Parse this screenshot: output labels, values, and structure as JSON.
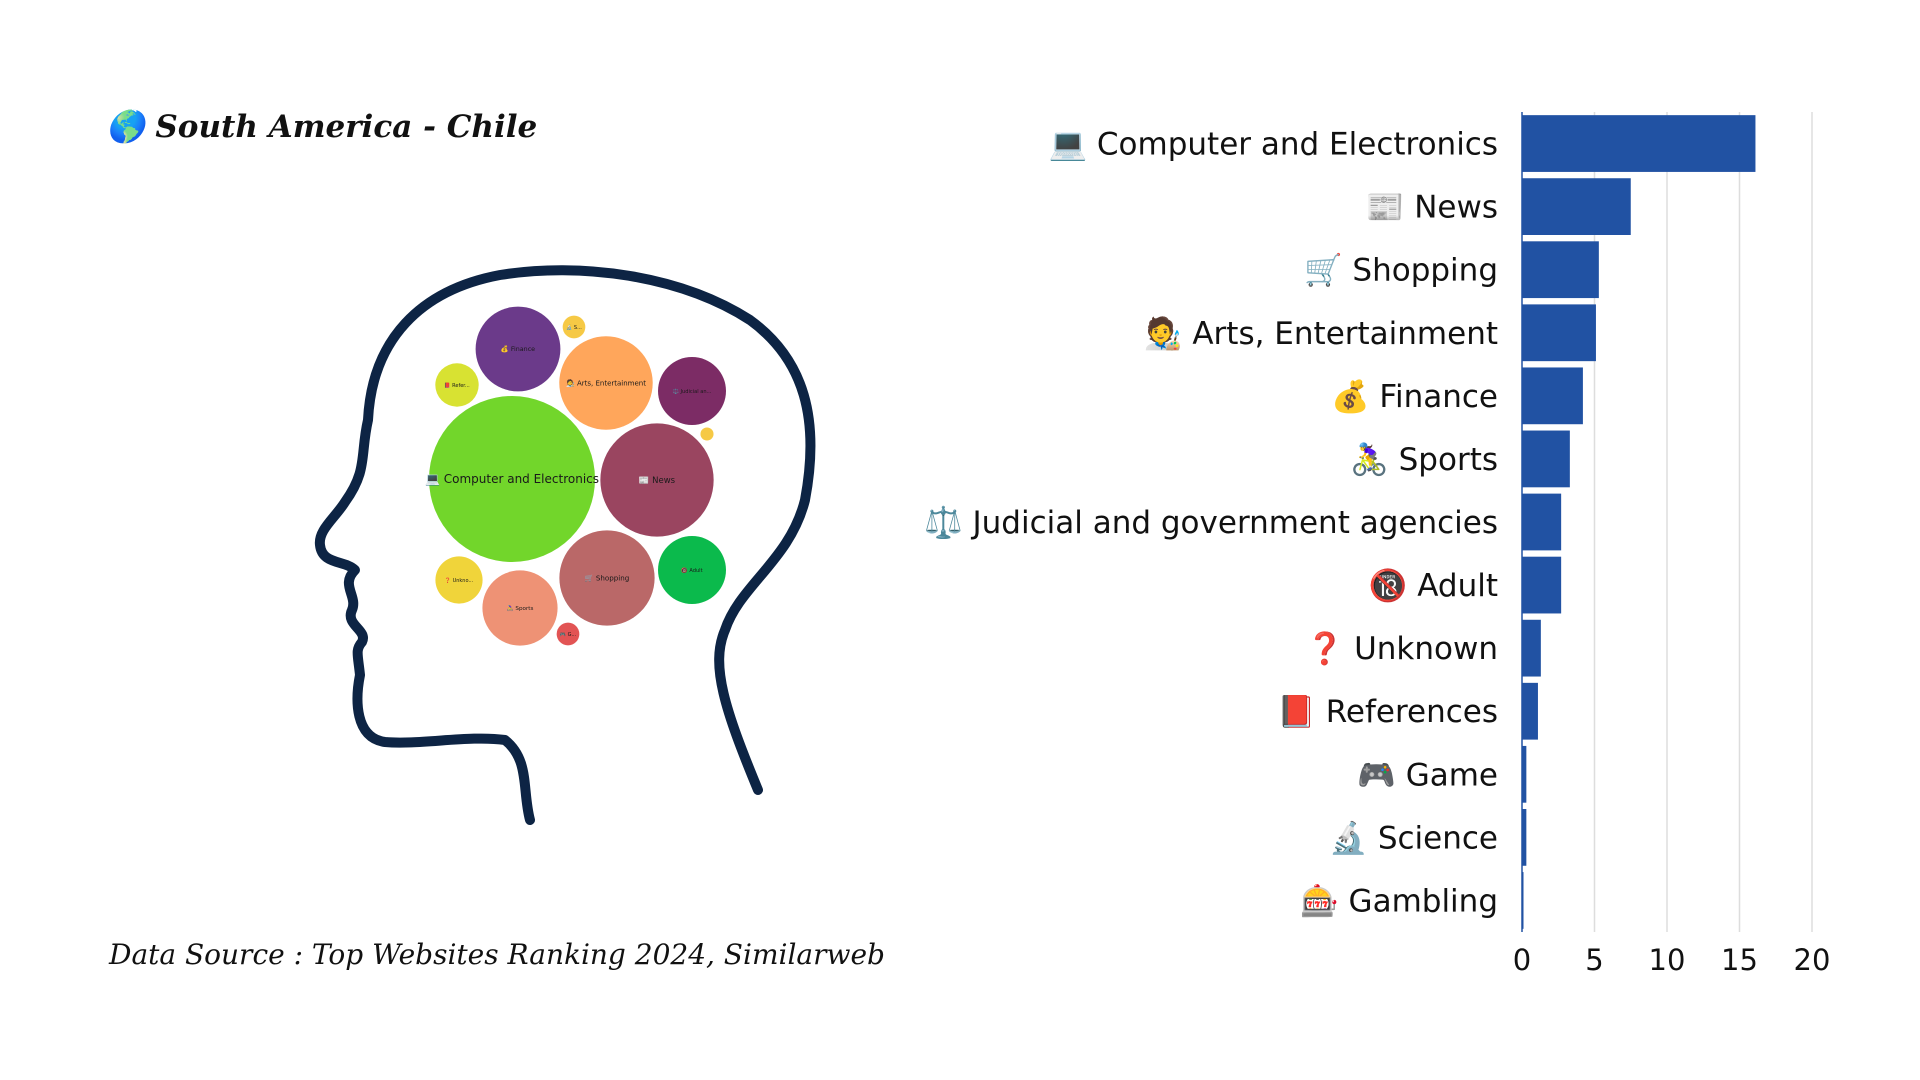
{
  "header": {
    "title": "🌎 South America - Chile",
    "source": "Data Source : Top Websites Ranking 2024, Similarweb"
  },
  "colors": {
    "bar": "#2152a3",
    "grid": "#dddddd",
    "head_outline": "#0d2444"
  },
  "chart_data": [
    {
      "type": "bar",
      "orientation": "horizontal",
      "categories": [
        "💻 Computer and Electronics",
        "📰 News",
        "🛒 Shopping",
        "🧑‍🎨 Arts, Entertainment",
        "💰 Finance",
        "🚴‍♀️ Sports",
        "⚖️ Judicial and government agencies",
        "🔞 Adult",
        "❓ Unknown",
        "📕 References",
        "🎮 Game",
        "🔬 Science",
        "🎰 Gambling"
      ],
      "values": [
        16.1,
        7.5,
        5.3,
        5.1,
        4.2,
        3.3,
        2.7,
        2.7,
        1.3,
        1.1,
        0.3,
        0.3,
        0.1
      ],
      "xlim": [
        0,
        20
      ],
      "xticks": [
        0,
        5,
        10,
        15,
        20
      ],
      "grid": true
    },
    {
      "type": "bubble",
      "bubbles": [
        {
          "label": "💻 Computer and Electronics",
          "value": 16.1,
          "color": "#72d62b"
        },
        {
          "label": "📰 News",
          "value": 7.5,
          "color": "#9a4560"
        },
        {
          "label": "🛒 Shopping",
          "value": 5.3,
          "color": "#ba6868"
        },
        {
          "label": "🧑‍🎨 Arts, Entertainment",
          "value": 5.1,
          "color": "#ffa65b"
        },
        {
          "label": "💰 Finance",
          "value": 4.2,
          "color": "#6b3a8a"
        },
        {
          "label": "🚴‍♀️ Sports",
          "value": 3.3,
          "color": "#ee9275"
        },
        {
          "label": "⚖️ Judicial an...",
          "value": 2.7,
          "color": "#7c2c65"
        },
        {
          "label": "🔞 Adult",
          "value": 2.7,
          "color": "#0bba4c"
        },
        {
          "label": "❓ Unkno...",
          "value": 1.3,
          "color": "#f0d43a"
        },
        {
          "label": "📕 Refer...",
          "value": 1.1,
          "color": "#d8e232"
        },
        {
          "label": "🎮 G...",
          "value": 0.3,
          "color": "#e25454"
        },
        {
          "label": "🔬 S...",
          "value": 0.3,
          "color": "#f6c945"
        },
        {
          "label": "",
          "value": 0.1,
          "color": "#f6c945"
        }
      ]
    }
  ]
}
